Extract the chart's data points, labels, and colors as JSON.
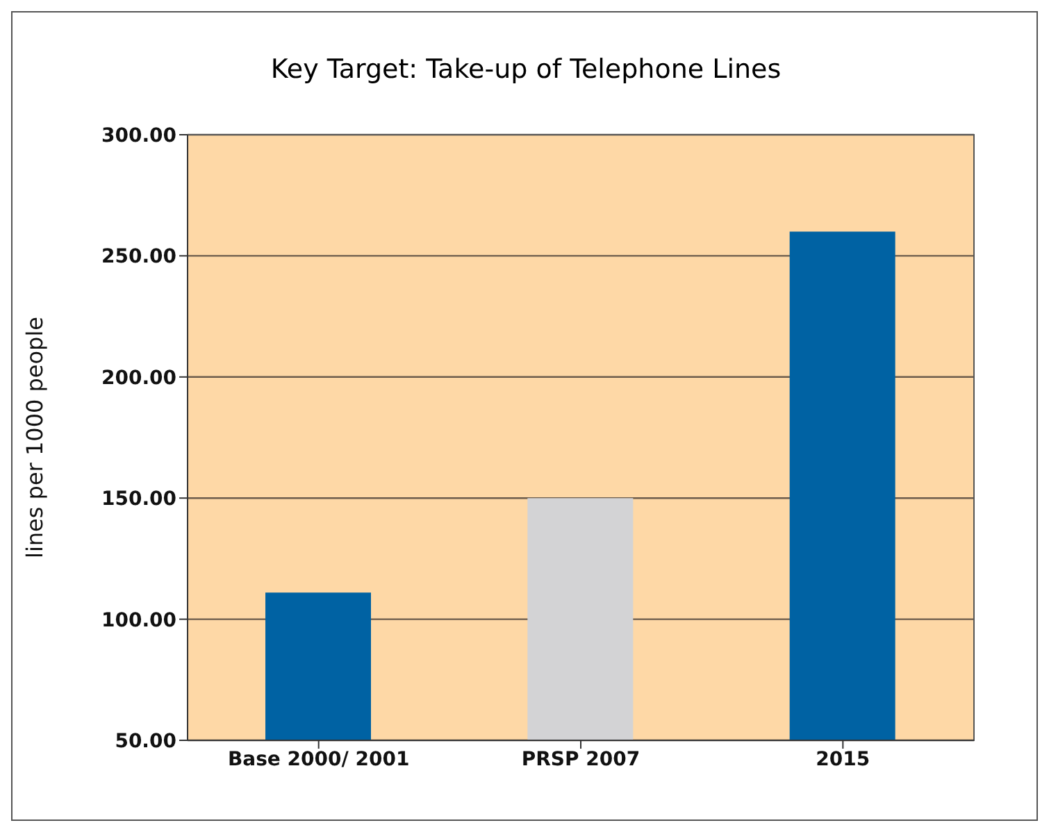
{
  "chart_data": {
    "type": "bar",
    "title": "Key Target: Take-up of Telephone Lines",
    "ylabel": "lines per 1000 people",
    "categories": [
      "Base 2000/ 2001",
      "PRSP 2007",
      "2015"
    ],
    "values": [
      111,
      150,
      260
    ],
    "colors": [
      "#0062a3",
      "#d3d3d5",
      "#0062a3"
    ],
    "ylim": [
      50,
      300
    ],
    "yticks": [
      {
        "value": 50,
        "label": "50.00"
      },
      {
        "value": 100,
        "label": "100.00"
      },
      {
        "value": 150,
        "label": "150.00"
      },
      {
        "value": 200,
        "label": "200.00"
      },
      {
        "value": 250,
        "label": "250.00"
      },
      {
        "value": 300,
        "label": "300.00"
      }
    ],
    "grid": "y",
    "legend": false
  }
}
